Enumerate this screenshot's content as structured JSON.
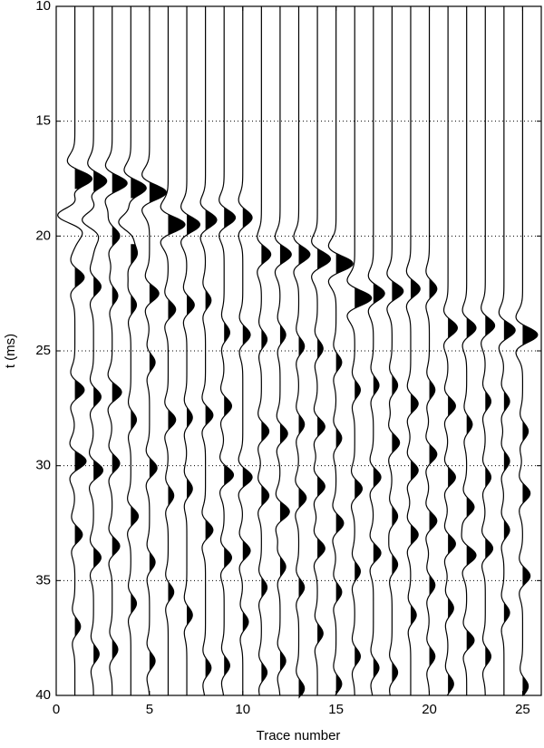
{
  "chart_data": {
    "type": "wiggle",
    "xlabel": "Trace number",
    "ylabel": "t (ms)",
    "xlim": [
      0,
      26
    ],
    "ylim": [
      40,
      10
    ],
    "xticks": [
      0,
      5,
      10,
      15,
      20,
      25
    ],
    "yticks": [
      10,
      15,
      20,
      25,
      30,
      35,
      40
    ],
    "grid": true,
    "color": "#000000",
    "traces": [
      {
        "x": 1,
        "t": [
          17.5,
          19.1,
          21.8,
          26.7,
          29.8,
          33,
          37
        ],
        "values": [
          0.9,
          -0.9,
          0.5,
          0.5,
          0.6,
          0.4,
          0.3
        ]
      },
      {
        "x": 2,
        "t": [
          17.6,
          19.3,
          22.2,
          27,
          30.2,
          34,
          38.2
        ],
        "values": [
          0.7,
          -0.6,
          0.4,
          0.4,
          0.5,
          0.4,
          0.3
        ]
      },
      {
        "x": 3,
        "t": [
          17.7,
          20,
          22.6,
          26.8,
          29.9,
          33.5,
          38
        ],
        "values": [
          0.8,
          0.4,
          0.3,
          0.5,
          0.4,
          0.4,
          0.3
        ]
      },
      {
        "x": 4,
        "t": [
          17.9,
          19.4,
          20.8,
          23,
          28,
          32.2,
          36
        ],
        "values": [
          0.8,
          -0.6,
          0.3,
          0.3,
          0.3,
          0.4,
          0.3
        ]
      },
      {
        "x": 5,
        "t": [
          18.1,
          22.5,
          25.5,
          30.1,
          34.2,
          38.5
        ],
        "values": [
          0.9,
          0.5,
          0.3,
          0.4,
          0.3,
          0.3
        ]
      },
      {
        "x": 6,
        "t": [
          19.5,
          23.2,
          28,
          31.3,
          35.5
        ],
        "values": [
          0.9,
          0.4,
          0.4,
          0.3,
          0.3
        ]
      },
      {
        "x": 7,
        "t": [
          19.5,
          23,
          27.9,
          31,
          36.5
        ],
        "values": [
          0.7,
          0.4,
          0.3,
          0.3,
          0.3
        ]
      },
      {
        "x": 8,
        "t": [
          19.3,
          22.8,
          27.8,
          32.8,
          38.8
        ],
        "values": [
          0.6,
          0.3,
          0.4,
          0.4,
          0.3
        ]
      },
      {
        "x": 9,
        "t": [
          19.2,
          24.2,
          27.4,
          30.4,
          34,
          38.7
        ],
        "values": [
          0.6,
          0.3,
          0.4,
          0.5,
          0.4,
          0.3
        ]
      },
      {
        "x": 10,
        "t": [
          19.2,
          24.3,
          30.5,
          33.7,
          36.8
        ],
        "values": [
          0.5,
          0.4,
          0.5,
          0.4,
          0.3
        ]
      },
      {
        "x": 11,
        "t": [
          20.8,
          24.5,
          28.5,
          31.3,
          35.3,
          39
        ],
        "values": [
          0.5,
          0.3,
          0.4,
          0.4,
          0.3,
          0.3
        ]
      },
      {
        "x": 12,
        "t": [
          20.8,
          24.3,
          28.6,
          32,
          34.4,
          38.5
        ],
        "values": [
          0.6,
          0.3,
          0.4,
          0.5,
          0.3,
          0.3
        ]
      },
      {
        "x": 13,
        "t": [
          20.8,
          24.8,
          28.2,
          31.4,
          35.3,
          39.7
        ],
        "values": [
          0.6,
          0.3,
          0.3,
          0.4,
          0.3,
          0.3
        ]
      },
      {
        "x": 14,
        "t": [
          21,
          24.9,
          28.3,
          30.9,
          33.6,
          37.3
        ],
        "values": [
          0.7,
          0.3,
          0.4,
          0.4,
          0.4,
          0.3
        ]
      },
      {
        "x": 15,
        "t": [
          21.2,
          25.5,
          28.8,
          32.5,
          35.5,
          39.5
        ],
        "values": [
          0.9,
          0.3,
          0.3,
          0.4,
          0.3,
          0.3
        ]
      },
      {
        "x": 16,
        "t": [
          22.7,
          26.7,
          31,
          34.6,
          38.3
        ],
        "values": [
          0.9,
          0.3,
          0.4,
          0.3,
          0.3
        ]
      },
      {
        "x": 17,
        "t": [
          22.5,
          26.5,
          30.5,
          33.8,
          38.8
        ],
        "values": [
          0.6,
          0.3,
          0.4,
          0.4,
          0.3
        ]
      },
      {
        "x": 18,
        "t": [
          22.4,
          26.5,
          29,
          32.2,
          34.3,
          39
        ],
        "values": [
          0.6,
          0.3,
          0.4,
          0.3,
          0.3,
          0.3
        ]
      },
      {
        "x": 19,
        "t": [
          22.3,
          27.3,
          30.2,
          33,
          36.5
        ],
        "values": [
          0.5,
          0.4,
          0.4,
          0.4,
          0.3
        ]
      },
      {
        "x": 20,
        "t": [
          22.3,
          26.7,
          29.5,
          32.4,
          35.2,
          38.3
        ],
        "values": [
          0.4,
          0.3,
          0.4,
          0.4,
          0.3,
          0.3
        ]
      },
      {
        "x": 21,
        "t": [
          24,
          27.4,
          30.5,
          33.4,
          36.2,
          39.5
        ],
        "values": [
          0.5,
          0.4,
          0.4,
          0.4,
          0.3,
          0.3
        ]
      },
      {
        "x": 22,
        "t": [
          24,
          28.2,
          31.8,
          33.9,
          37.6
        ],
        "values": [
          0.5,
          0.3,
          0.4,
          0.5,
          0.4
        ]
      },
      {
        "x": 23,
        "t": [
          23.9,
          27.2,
          30.5,
          33.6,
          38.3
        ],
        "values": [
          0.5,
          0.3,
          0.3,
          0.4,
          0.3
        ]
      },
      {
        "x": 24,
        "t": [
          24.1,
          27.2,
          29.8,
          32.8,
          36.4
        ],
        "values": [
          0.6,
          0.3,
          0.3,
          0.3,
          0.3
        ]
      },
      {
        "x": 25,
        "t": [
          24.3,
          28.5,
          31.2,
          34.8,
          39.6
        ],
        "values": [
          0.8,
          0.3,
          0.4,
          0.4,
          0.3
        ]
      }
    ]
  }
}
